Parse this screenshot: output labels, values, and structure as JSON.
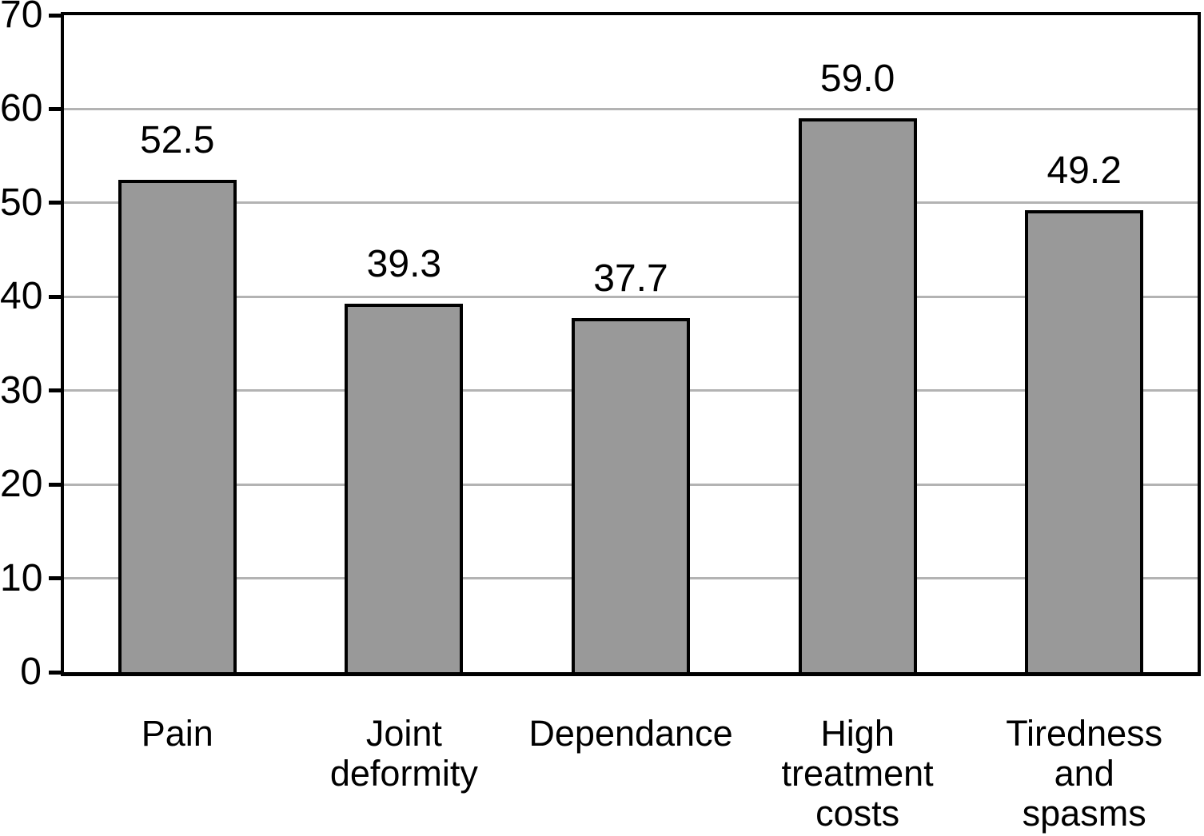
{
  "chart_data": {
    "type": "bar",
    "title": "",
    "xlabel": "",
    "ylabel": "",
    "categories": [
      "Pain",
      "Joint deformity",
      "Dependance",
      "High treatment costs",
      "Tiredness and spasms"
    ],
    "category_display_lines": [
      [
        "Pain"
      ],
      [
        "Joint",
        "deformity"
      ],
      [
        "Dependance"
      ],
      [
        "High",
        "treatment",
        "costs"
      ],
      [
        "Tiredness",
        "and",
        "spasms"
      ]
    ],
    "values": [
      52.5,
      39.3,
      37.7,
      59.0,
      49.2
    ],
    "value_labels": [
      "52.5",
      "39.3",
      "37.7",
      "59.0",
      "49.2"
    ],
    "ylim": [
      0,
      70
    ],
    "yticks": [
      0,
      10,
      20,
      30,
      40,
      50,
      60,
      70
    ],
    "grid": true,
    "legend_position": "none",
    "colors": {
      "bar_fill": "#999999",
      "bar_border": "#000000",
      "gridline": "#b3b3b3",
      "axis_border": "#000000",
      "text": "#000000",
      "background": "#ffffff"
    }
  }
}
